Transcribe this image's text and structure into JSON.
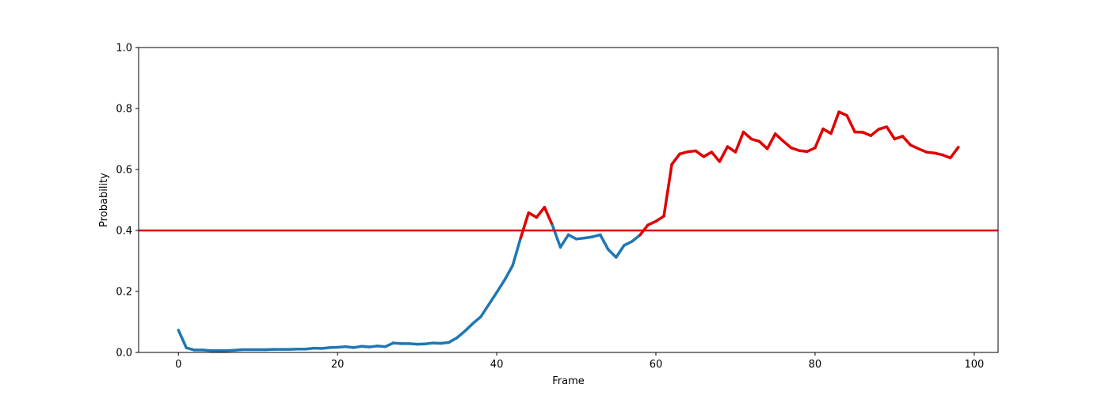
{
  "chart_data": {
    "type": "line",
    "xlabel": "Frame",
    "ylabel": "Probability",
    "xlim": [
      -5,
      103
    ],
    "ylim": [
      0,
      1
    ],
    "x_ticks": [
      0,
      20,
      40,
      60,
      80,
      100
    ],
    "x_tick_labels": [
      "0",
      "20",
      "40",
      "60",
      "80",
      "100"
    ],
    "y_ticks": [
      0,
      0.2,
      0.4,
      0.6,
      0.8,
      1.0
    ],
    "y_tick_labels": [
      "0.0",
      "0.2",
      "0.4",
      "0.6",
      "0.8",
      "1.0"
    ],
    "grid": false,
    "threshold": 0.4,
    "colors": {
      "below_threshold": "#1f77b4",
      "above_threshold": "#e00000",
      "threshold_line": "#e00000"
    },
    "x": [
      0,
      1,
      2,
      3,
      4,
      5,
      6,
      7,
      8,
      9,
      10,
      11,
      12,
      13,
      14,
      15,
      16,
      17,
      18,
      19,
      20,
      21,
      22,
      23,
      24,
      25,
      26,
      27,
      28,
      29,
      30,
      31,
      32,
      33,
      34,
      35,
      36,
      37,
      38,
      39,
      40,
      41,
      42,
      43,
      44,
      45,
      46,
      47,
      48,
      49,
      50,
      51,
      52,
      53,
      54,
      55,
      56,
      57,
      58,
      59,
      60,
      61,
      62,
      63,
      64,
      65,
      66,
      67,
      68,
      69,
      70,
      71,
      72,
      73,
      74,
      75,
      76,
      77,
      78,
      79,
      80,
      81,
      82,
      83,
      84,
      85,
      86,
      87,
      88,
      89,
      90,
      91,
      92,
      93,
      94,
      95,
      96,
      97,
      98
    ],
    "y": [
      0.073,
      0.015,
      0.008,
      0.008,
      0.006,
      0.006,
      0.006,
      0.007,
      0.009,
      0.009,
      0.009,
      0.009,
      0.01,
      0.01,
      0.01,
      0.011,
      0.011,
      0.014,
      0.013,
      0.016,
      0.017,
      0.019,
      0.016,
      0.02,
      0.018,
      0.021,
      0.019,
      0.031,
      0.029,
      0.029,
      0.027,
      0.028,
      0.031,
      0.03,
      0.033,
      0.048,
      0.07,
      0.095,
      0.117,
      0.157,
      0.197,
      0.238,
      0.285,
      0.375,
      0.458,
      0.443,
      0.476,
      0.417,
      0.345,
      0.386,
      0.372,
      0.375,
      0.379,
      0.386,
      0.338,
      0.312,
      0.351,
      0.364,
      0.385,
      0.418,
      0.43,
      0.447,
      0.617,
      0.651,
      0.658,
      0.661,
      0.642,
      0.657,
      0.626,
      0.675,
      0.657,
      0.723,
      0.7,
      0.692,
      0.668,
      0.717,
      0.693,
      0.671,
      0.662,
      0.659,
      0.671,
      0.733,
      0.718,
      0.789,
      0.777,
      0.723,
      0.722,
      0.711,
      0.732,
      0.74,
      0.7,
      0.709,
      0.68,
      0.668,
      0.657,
      0.654,
      0.648,
      0.638,
      0.673
    ]
  }
}
